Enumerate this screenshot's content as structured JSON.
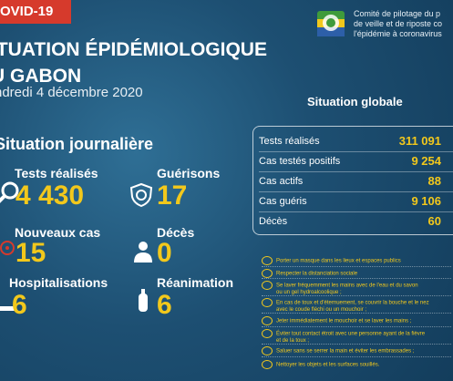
{
  "banner": "OVID-19",
  "committee": {
    "line1": "Comité de pilotage du p",
    "line2": "de veille et de riposte co",
    "line3": "l'épidémie à coronavirus"
  },
  "title": {
    "line1": "ITUATION ÉPIDÉMIOLOGIQUE",
    "line2": "U GABON"
  },
  "date": "ndredi 4 décembre 2020",
  "daily": {
    "title": "Situation journalière",
    "tests": {
      "label": "Tests réalisés",
      "value": "4 430"
    },
    "recoveries": {
      "label": "Guérisons",
      "value": "17"
    },
    "new_cases": {
      "label": "Nouveaux cas",
      "value": "15"
    },
    "deaths": {
      "label": "Décès",
      "value": "0"
    },
    "hospital": {
      "label": "Hospitalisations",
      "value": "6"
    },
    "icu": {
      "label": "Réanimation",
      "value": "6"
    }
  },
  "global": {
    "title": "Situation globale",
    "rows": [
      {
        "label": "Tests réalisés",
        "value": "311 091"
      },
      {
        "label": "Cas testés positifs",
        "value": "9 254"
      },
      {
        "label": "Cas actifs",
        "value": "88"
      },
      {
        "label": "Cas guéris",
        "value": "9 106"
      },
      {
        "label": "Décès",
        "value": "60"
      }
    ]
  },
  "guidelines": [
    "Porter un masque dans les lieux et espaces publics",
    "Respecter la distanciation sociale",
    "Se laver fréquemment les mains avec de l'eau et du savon",
    "ou un gel hydroalcoolique ;",
    "En cas de toux et d'éternuement, se couvrir la bouche et le nez",
    "avec le coude fléchi ou un mouchoir ;",
    "Jeter immédiatement le mouchoir et se laver les mains ;",
    "Éviter tout contact étroit avec une personne ayant de la fièvre",
    "et de la toux ;",
    "Saluer sans se serrer la main et éviter les embrassades ;",
    "Nettoyer les objets et les surfaces souillés."
  ],
  "colors": {
    "accent": "#f2c81c",
    "banner": "#d63a2c",
    "background": "#1d4f72"
  }
}
